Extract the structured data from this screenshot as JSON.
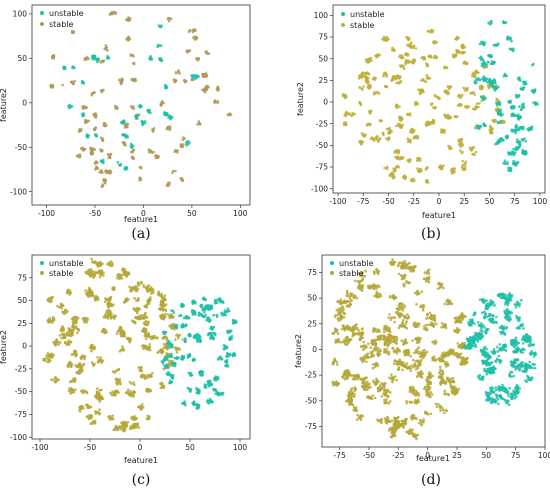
{
  "chart_data": [
    {
      "panel": "a",
      "type": "scatter",
      "caption": "(a)",
      "xlabel": "feature1",
      "ylabel": "feature2",
      "xlim": [
        -115,
        110
      ],
      "ylim": [
        -115,
        110
      ],
      "xticks": [
        -100,
        -50,
        0,
        50,
        100
      ],
      "yticks": [
        -100,
        -50,
        0,
        50,
        100
      ],
      "legend": "top-left",
      "series": [
        {
          "name": "unstable",
          "color": "#1ebfa8"
        },
        {
          "name": "stable",
          "color": "#b39a5a"
        }
      ],
      "clusters": [
        {
          "series": "stable",
          "cx": -10,
          "cy": 0,
          "rx": 100,
          "ry": 105,
          "count": 620,
          "shape": "disk-clustered"
        },
        {
          "series": "unstable",
          "cx": -20,
          "cy": 10,
          "rx": 85,
          "ry": 90,
          "count": 260,
          "shape": "disk-clustered"
        }
      ]
    },
    {
      "panel": "b",
      "type": "scatter",
      "caption": "(b)",
      "xlabel": "feature1",
      "ylabel": "feature2",
      "xlim": [
        -105,
        105
      ],
      "ylim": [
        -105,
        112
      ],
      "xticks": [
        -100,
        -75,
        -50,
        -25,
        0,
        25,
        50,
        75,
        100
      ],
      "yticks": [
        -100,
        -75,
        -50,
        -25,
        0,
        25,
        50,
        75,
        100
      ],
      "legend": "top-left",
      "series": [
        {
          "name": "unstable",
          "color": "#1ebfa8"
        },
        {
          "name": "stable",
          "color": "#c0b03a"
        }
      ],
      "clusters": [
        {
          "series": "stable",
          "cx": -15,
          "cy": -5,
          "rx": 80,
          "ry": 90,
          "count": 1100,
          "shape": "disk-clustered"
        },
        {
          "series": "unstable",
          "cx": 65,
          "cy": 10,
          "rx": 32,
          "ry": 90,
          "count": 520,
          "shape": "disk-clustered"
        }
      ]
    },
    {
      "panel": "c",
      "type": "scatter",
      "caption": "(c)",
      "xlabel": "feature1",
      "ylabel": "feature2",
      "xlim": [
        -108,
        110
      ],
      "ylim": [
        -102,
        100
      ],
      "xticks": [
        -100,
        -50,
        0,
        50,
        100
      ],
      "yticks": [
        -100,
        -75,
        -50,
        -25,
        0,
        25,
        50,
        75
      ],
      "legend": "top-left",
      "series": [
        {
          "name": "unstable",
          "color": "#1ebfa8"
        },
        {
          "name": "stable",
          "color": "#b5a83a"
        }
      ],
      "clusters": [
        {
          "series": "stable",
          "cx": -30,
          "cy": 0,
          "rx": 72,
          "ry": 95,
          "count": 1500,
          "shape": "disk-dense"
        },
        {
          "series": "unstable",
          "cx": 60,
          "cy": -5,
          "rx": 40,
          "ry": 65,
          "count": 650,
          "shape": "disk-clustered"
        }
      ]
    },
    {
      "panel": "d",
      "type": "scatter",
      "caption": "(d)",
      "xlabel": "feature1",
      "ylabel": "feature2",
      "xlim": [
        -90,
        100
      ],
      "ylim": [
        -95,
        92
      ],
      "xticks": [
        -75,
        -50,
        -25,
        0,
        25,
        50,
        75,
        100
      ],
      "yticks": [
        -75,
        -50,
        -25,
        0,
        25,
        50,
        75
      ],
      "legend": "top-left",
      "series": [
        {
          "name": "unstable",
          "color": "#1ebfa8"
        },
        {
          "name": "stable",
          "color": "#b5a83a"
        }
      ],
      "clusters": [
        {
          "series": "stable",
          "cx": -25,
          "cy": 0,
          "rx": 58,
          "ry": 88,
          "count": 1900,
          "shape": "disk-dense"
        },
        {
          "series": "unstable",
          "cx": 62,
          "cy": 0,
          "rx": 30,
          "ry": 55,
          "count": 900,
          "shape": "disk-dense"
        }
      ]
    }
  ]
}
